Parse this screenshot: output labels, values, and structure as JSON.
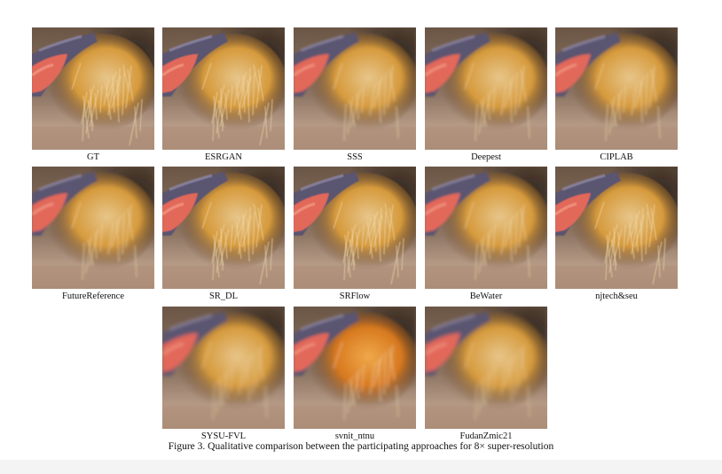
{
  "figure": {
    "caption": "Figure 3. Qualitative comparison between the participating approaches for 8× super-resolution",
    "panels": [
      {
        "label": "GT",
        "style": "sharp"
      },
      {
        "label": "ESRGAN",
        "style": "sharp"
      },
      {
        "label": "SSS",
        "style": "soft"
      },
      {
        "label": "Deepest",
        "style": "soft"
      },
      {
        "label": "CIPLAB",
        "style": "soft"
      },
      {
        "label": "FutureReference",
        "style": "soft"
      },
      {
        "label": "SR_DL",
        "style": "sharp"
      },
      {
        "label": "SRFlow",
        "style": "sharp"
      },
      {
        "label": "BeWater",
        "style": "soft"
      },
      {
        "label": "njtech&seu",
        "style": "sharp"
      },
      {
        "label": "SYSU-FVL",
        "style": "blurry"
      },
      {
        "label": "svnit_ntnu",
        "style": "warm"
      },
      {
        "label": "FudanZmic21",
        "style": "blurry"
      }
    ]
  }
}
